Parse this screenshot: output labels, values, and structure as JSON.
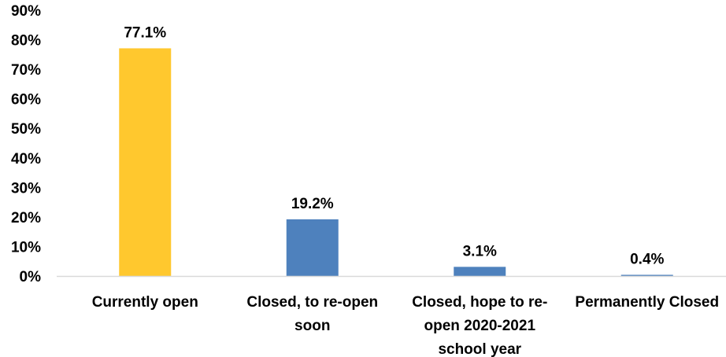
{
  "chart_data": {
    "type": "bar",
    "title": "",
    "xlabel": "",
    "ylabel": "",
    "ylim": [
      0,
      90
    ],
    "yticks": [
      "0%",
      "10%",
      "20%",
      "30%",
      "40%",
      "50%",
      "60%",
      "70%",
      "80%",
      "90%"
    ],
    "grid": false,
    "legend": "none",
    "categories": [
      [
        "Currently open"
      ],
      [
        "Closed, to re-open",
        "soon"
      ],
      [
        "Closed,  hope to re-",
        "open 2020-2021",
        "school year"
      ],
      [
        "Permanently Closed"
      ]
    ],
    "values": [
      77.1,
      19.2,
      3.1,
      0.4
    ],
    "data_labels": [
      "77.1%",
      "19.2%",
      "3.1%",
      "0.4%"
    ],
    "colors": [
      "#FFC82E",
      "#4E81BD",
      "#4E81BD",
      "#4E81BD"
    ],
    "axis_color": "#D9D9D9"
  }
}
